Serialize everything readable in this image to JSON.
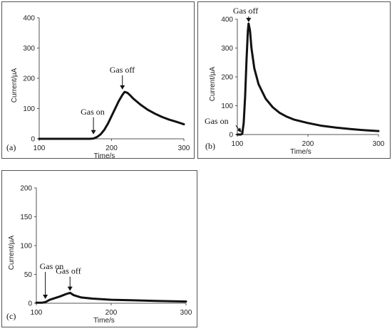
{
  "chart_data": [
    {
      "panel_label": "(a)",
      "type": "line",
      "xlabel": "Time/s",
      "ylabel": "Current/µA",
      "xlim": [
        100,
        300
      ],
      "ylim": [
        0,
        400
      ],
      "xticks": [
        "100",
        "200",
        "300"
      ],
      "yticks": [
        "0",
        "100",
        "200",
        "300",
        "400"
      ],
      "annotations": [
        {
          "text": "Gas on",
          "x": 175,
          "y": 10
        },
        {
          "text": "Gas off",
          "x": 215,
          "y": 158
        }
      ],
      "series": [
        {
          "x": [
            100,
            120,
            140,
            160,
            170,
            175,
            180,
            185,
            190,
            195,
            200,
            205,
            210,
            215,
            218,
            222,
            226,
            230,
            240,
            250,
            260,
            270,
            280,
            290,
            300
          ],
          "y": [
            0,
            0,
            0,
            0,
            0,
            1,
            6,
            15,
            30,
            50,
            75,
            100,
            125,
            145,
            155,
            152,
            143,
            133,
            113,
            96,
            83,
            72,
            63,
            56,
            48
          ]
        }
      ]
    },
    {
      "panel_label": "(b)",
      "type": "line",
      "xlabel": "Time/s",
      "ylabel": "Current/µA",
      "xlim": [
        100,
        300
      ],
      "ylim": [
        0,
        400
      ],
      "xticks": [
        "100",
        "200",
        "300"
      ],
      "yticks": [
        "0",
        "100",
        "200",
        "300",
        "400"
      ],
      "annotations": [
        {
          "text": "Gas on",
          "x": 106,
          "y": 2
        },
        {
          "text": "Gas off",
          "x": 116,
          "y": 385
        }
      ],
      "series": [
        {
          "x": [
            100,
            105,
            107,
            109,
            111,
            113,
            115,
            116,
            118,
            120,
            124,
            130,
            140,
            150,
            160,
            170,
            180,
            200,
            220,
            240,
            260,
            280,
            300
          ],
          "y": [
            0,
            0,
            3,
            40,
            130,
            260,
            360,
            385,
            360,
            300,
            230,
            175,
            125,
            95,
            75,
            62,
            52,
            40,
            30,
            24,
            19,
            15,
            12
          ]
        }
      ]
    },
    {
      "panel_label": "(c)",
      "type": "line",
      "xlabel": "Time/s",
      "ylabel": "Current/µA",
      "xlim": [
        100,
        300
      ],
      "ylim": [
        0,
        200
      ],
      "xticks": [
        "100",
        "200",
        "300"
      ],
      "yticks": [
        "0",
        "50",
        "100",
        "150",
        "200"
      ],
      "annotations": [
        {
          "text": "Gas on",
          "x": 112,
          "y": 5
        },
        {
          "text": "Gas off",
          "x": 145,
          "y": 19
        }
      ],
      "series": [
        {
          "x": [
            100,
            108,
            112,
            118,
            125,
            132,
            140,
            145,
            150,
            160,
            175,
            200,
            230,
            260,
            300
          ],
          "y": [
            1,
            1,
            2,
            6,
            9,
            12,
            16,
            18,
            14,
            10,
            8,
            6,
            5,
            4,
            3
          ]
        }
      ]
    }
  ]
}
